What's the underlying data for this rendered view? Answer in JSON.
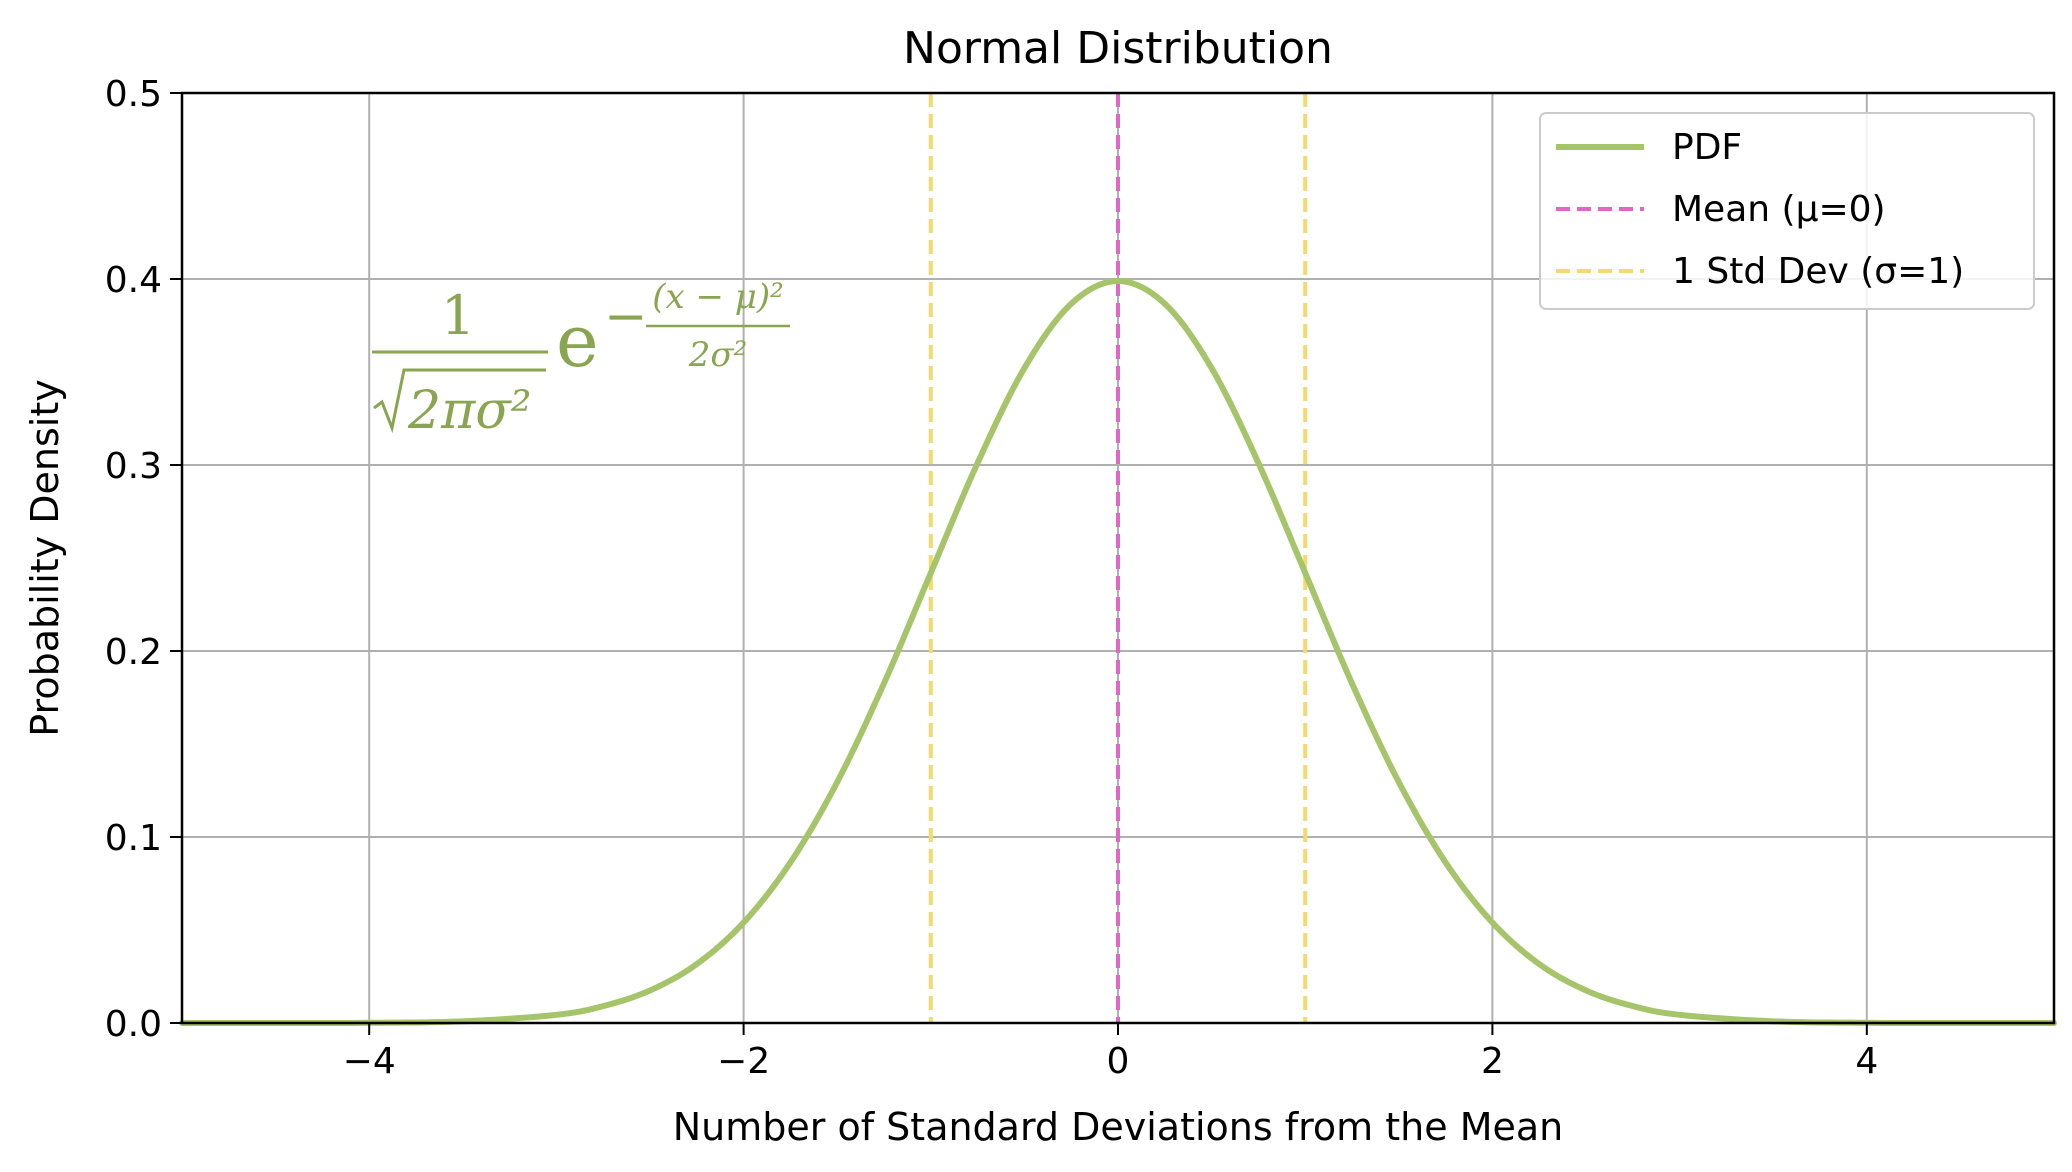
{
  "chart_data": {
    "type": "line",
    "title": "Normal Distribution",
    "xlabel": "Number of Standard Deviations from the Mean",
    "ylabel": "Probability Density",
    "xlim": [
      -5,
      5
    ],
    "ylim": [
      0,
      0.5
    ],
    "grid": true,
    "legend_position": "top-right",
    "x_ticks": [
      -4,
      -2,
      0,
      2,
      4
    ],
    "x_tick_labels": [
      "−4",
      "−2",
      "0",
      "2",
      "4"
    ],
    "y_ticks": [
      0.0,
      0.1,
      0.2,
      0.3,
      0.4,
      0.5
    ],
    "y_tick_labels": [
      "0.0",
      "0.1",
      "0.2",
      "0.3",
      "0.4",
      "0.5"
    ],
    "series": [
      {
        "name": "PDF",
        "color": "#a6c46a",
        "style": "solid",
        "x": [
          -5.0,
          -4.5,
          -4.0,
          -3.5,
          -3.0,
          -2.75,
          -2.5,
          -2.25,
          -2.0,
          -1.75,
          -1.5,
          -1.25,
          -1.0,
          -0.75,
          -0.5,
          -0.25,
          0.0,
          0.25,
          0.5,
          0.75,
          1.0,
          1.25,
          1.5,
          1.75,
          2.0,
          2.25,
          2.5,
          2.75,
          3.0,
          3.5,
          4.0,
          4.5,
          5.0
        ],
        "y": [
          0.0,
          0.0,
          0.0001,
          0.0009,
          0.0044,
          0.0091,
          0.0175,
          0.0317,
          0.054,
          0.0863,
          0.1295,
          0.1826,
          0.242,
          0.3011,
          0.3521,
          0.3867,
          0.3989,
          0.3867,
          0.3521,
          0.3011,
          0.242,
          0.1826,
          0.1295,
          0.0863,
          0.054,
          0.0317,
          0.0175,
          0.0091,
          0.0044,
          0.0009,
          0.0001,
          0.0,
          0.0
        ]
      }
    ],
    "vlines": [
      {
        "name": "Mean (μ=0)",
        "x": 0,
        "color": "#e066c8",
        "style": "dashed"
      },
      {
        "name": "1 Std Dev (σ=1)",
        "x": -1,
        "color": "#f7d86b",
        "style": "dashed"
      },
      {
        "name": "",
        "x": 1,
        "color": "#f7d86b",
        "style": "dashed"
      }
    ],
    "legend": [
      {
        "label": "PDF",
        "color": "#a6c46a",
        "style": "solid"
      },
      {
        "label": "Mean (μ=0)",
        "color": "#e066c8",
        "style": "dashed"
      },
      {
        "label": "1 Std Dev (σ=1)",
        "color": "#f7d86b",
        "style": "dashed"
      }
    ],
    "annotation": {
      "numerator": "1",
      "denominator": "2πσ²",
      "base": "e",
      "exp_sign": "−",
      "exp_numerator": "(x − μ)²",
      "exp_denominator": "2σ²",
      "color": "#8aa550"
    }
  }
}
